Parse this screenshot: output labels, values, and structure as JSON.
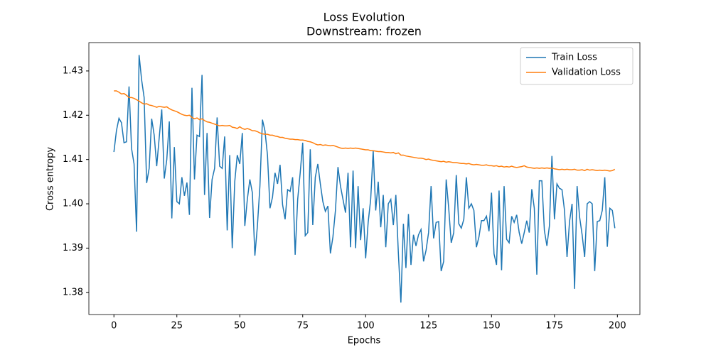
{
  "chart_data": {
    "type": "line",
    "title": "Loss Evolution",
    "subtitle": "Downstream: frozen",
    "x_label": "Epochs",
    "y_label": "Cross entropy",
    "x": [
      0,
      1,
      2,
      3,
      4,
      5,
      6,
      7,
      8,
      9,
      10,
      11,
      12,
      13,
      14,
      15,
      16,
      17,
      18,
      19,
      20,
      21,
      22,
      23,
      24,
      25,
      26,
      27,
      28,
      29,
      30,
      31,
      32,
      33,
      34,
      35,
      36,
      37,
      38,
      39,
      40,
      41,
      42,
      43,
      44,
      45,
      46,
      47,
      48,
      49,
      50,
      51,
      52,
      53,
      54,
      55,
      56,
      57,
      58,
      59,
      60,
      61,
      62,
      63,
      64,
      65,
      66,
      67,
      68,
      69,
      70,
      71,
      72,
      73,
      74,
      75,
      76,
      77,
      78,
      79,
      80,
      81,
      82,
      83,
      84,
      85,
      86,
      87,
      88,
      89,
      90,
      91,
      92,
      93,
      94,
      95,
      96,
      97,
      98,
      99,
      100,
      101,
      102,
      103,
      104,
      105,
      106,
      107,
      108,
      109,
      110,
      111,
      112,
      113,
      114,
      115,
      116,
      117,
      118,
      119,
      120,
      121,
      122,
      123,
      124,
      125,
      126,
      127,
      128,
      129,
      130,
      131,
      132,
      133,
      134,
      135,
      136,
      137,
      138,
      139,
      140,
      141,
      142,
      143,
      144,
      145,
      146,
      147,
      148,
      149,
      150,
      151,
      152,
      153,
      154,
      155,
      156,
      157,
      158,
      159,
      160,
      161,
      162,
      163,
      164,
      165,
      166,
      167,
      168,
      169,
      170,
      171,
      172,
      173,
      174,
      175,
      176,
      177,
      178,
      179,
      180,
      181,
      182,
      183,
      184,
      185,
      186,
      187,
      188,
      189,
      190,
      191,
      192,
      193,
      194,
      195,
      196,
      197,
      198,
      199
    ],
    "series": [
      {
        "name": "Train Loss",
        "color": "#1f77b4",
        "values": [
          1.4117,
          1.4165,
          1.4193,
          1.4183,
          1.4138,
          1.414,
          1.4265,
          1.4125,
          1.409,
          1.3937,
          1.4336,
          1.428,
          1.424,
          1.4047,
          1.408,
          1.4192,
          1.4155,
          1.4085,
          1.415,
          1.4213,
          1.4057,
          1.41,
          1.4186,
          1.3967,
          1.4128,
          1.4005,
          1.4,
          1.406,
          1.4018,
          1.4048,
          1.3975,
          1.4262,
          1.4055,
          1.4155,
          1.4152,
          1.4291,
          1.402,
          1.416,
          1.3968,
          1.4055,
          1.408,
          1.4195,
          1.4085,
          1.408,
          1.4152,
          1.394,
          1.411,
          1.39,
          1.405,
          1.411,
          1.409,
          1.416,
          1.395,
          1.401,
          1.4055,
          1.4025,
          1.3883,
          1.395,
          1.404,
          1.419,
          1.4165,
          1.411,
          1.399,
          1.4015,
          1.407,
          1.4045,
          1.4088,
          1.3998,
          1.3965,
          1.4032,
          1.4028,
          1.406,
          1.3885,
          1.401,
          1.407,
          1.4138,
          1.3928,
          1.3935,
          1.4123,
          1.3952,
          1.406,
          1.409,
          1.4045,
          1.4005,
          1.3983,
          1.3995,
          1.3888,
          1.3925,
          1.3985,
          1.4083,
          1.404,
          1.401,
          1.398,
          1.407,
          1.3902,
          1.4075,
          1.39,
          1.404,
          1.3918,
          1.399,
          1.3877,
          1.3958,
          1.401,
          1.412,
          1.3985,
          1.405,
          1.3947,
          1.402,
          1.3902,
          1.4,
          1.401,
          1.3952,
          1.402,
          1.3888,
          1.3777,
          1.3955,
          1.3855,
          1.3977,
          1.3862,
          1.393,
          1.3905,
          1.393,
          1.3942,
          1.387,
          1.3895,
          1.3935,
          1.404,
          1.3922,
          1.3958,
          1.396,
          1.3848,
          1.387,
          1.4055,
          1.399,
          1.3912,
          1.3935,
          1.4065,
          1.3955,
          1.3945,
          1.3965,
          1.406,
          1.399,
          1.4,
          1.3985,
          1.3902,
          1.3925,
          1.3962,
          1.3962,
          1.3972,
          1.3938,
          1.4025,
          1.3887,
          1.3862,
          1.403,
          1.385,
          1.404,
          1.392,
          1.3912,
          1.3972,
          1.3958,
          1.3975,
          1.3935,
          1.391,
          1.3935,
          1.3962,
          1.3935,
          1.4033,
          1.399,
          1.384,
          1.4052,
          1.4052,
          1.394,
          1.3905,
          1.395,
          1.4108,
          1.3965,
          1.4045,
          1.4035,
          1.4032,
          1.3985,
          1.388,
          1.396,
          1.4,
          1.3808,
          1.404,
          1.397,
          1.393,
          1.388,
          1.4,
          1.4005,
          1.4,
          1.3848,
          1.396,
          1.3962,
          1.3985,
          1.406,
          1.3903,
          1.399,
          1.3985,
          1.3945
        ]
      },
      {
        "name": "Validation Loss",
        "color": "#ff7f0e",
        "values": [
          1.4255,
          1.4255,
          1.4252,
          1.4248,
          1.4249,
          1.4245,
          1.424,
          1.424,
          1.4238,
          1.4235,
          1.4232,
          1.4228,
          1.4225,
          1.4226,
          1.4223,
          1.4222,
          1.422,
          1.4218,
          1.422,
          1.4219,
          1.4218,
          1.4219,
          1.4215,
          1.4212,
          1.421,
          1.4208,
          1.4205,
          1.4202,
          1.42,
          1.4199,
          1.42,
          1.4195,
          1.4192,
          1.4194,
          1.419,
          1.4192,
          1.4188,
          1.4185,
          1.4184,
          1.4182,
          1.418,
          1.4178,
          1.4176,
          1.4177,
          1.4176,
          1.4176,
          1.4177,
          1.4173,
          1.4172,
          1.417,
          1.4174,
          1.417,
          1.4168,
          1.417,
          1.4168,
          1.4165,
          1.4165,
          1.4163,
          1.416,
          1.4158,
          1.4157,
          1.4157,
          1.4155,
          1.4155,
          1.4153,
          1.4152,
          1.415,
          1.415,
          1.4148,
          1.4147,
          1.4146,
          1.4146,
          1.4145,
          1.4145,
          1.4144,
          1.4144,
          1.4143,
          1.4141,
          1.414,
          1.4138,
          1.4135,
          1.4133,
          1.4134,
          1.4132,
          1.4133,
          1.4132,
          1.4131,
          1.4132,
          1.413,
          1.4128,
          1.4126,
          1.4125,
          1.4126,
          1.4125,
          1.4126,
          1.4125,
          1.4126,
          1.4125,
          1.4124,
          1.4123,
          1.4122,
          1.4122,
          1.412,
          1.412,
          1.4119,
          1.4118,
          1.4118,
          1.4117,
          1.4116,
          1.4116,
          1.4115,
          1.4116,
          1.4113,
          1.4115,
          1.411,
          1.411,
          1.4108,
          1.4107,
          1.4106,
          1.4105,
          1.4104,
          1.4103,
          1.4103,
          1.4102,
          1.41,
          1.4101,
          1.4099,
          1.4098,
          1.4097,
          1.4096,
          1.4095,
          1.4096,
          1.4094,
          1.4095,
          1.4094,
          1.4093,
          1.4093,
          1.4092,
          1.4091,
          1.4091,
          1.409,
          1.4091,
          1.4089,
          1.4088,
          1.4089,
          1.4088,
          1.4087,
          1.4087,
          1.4088,
          1.4086,
          1.4086,
          1.4085,
          1.4086,
          1.4084,
          1.4085,
          1.4083,
          1.4084,
          1.4083,
          1.4085,
          1.4083,
          1.4082,
          1.4083,
          1.4084,
          1.4086,
          1.4083,
          1.4082,
          1.4081,
          1.408,
          1.4081,
          1.408,
          1.4081,
          1.408,
          1.4081,
          1.408,
          1.4081,
          1.4079,
          1.4078,
          1.4077,
          1.4078,
          1.4077,
          1.4078,
          1.4077,
          1.4077,
          1.4078,
          1.4076,
          1.4076,
          1.4077,
          1.4075,
          1.4078,
          1.4076,
          1.4077,
          1.4076,
          1.4075,
          1.4076,
          1.4075,
          1.4076,
          1.4075,
          1.4074,
          1.4075,
          1.4078
        ]
      }
    ],
    "xlim": [
      -9.95,
      208.95
    ],
    "xticks": [
      0,
      25,
      50,
      75,
      100,
      125,
      150,
      175,
      200
    ],
    "ylim": [
      1.375,
      1.4364
    ],
    "yticks": [
      1.38,
      1.39,
      {
        "value": 1.4,
        "label": "1.40"
      },
      1.41,
      1.42,
      1.43
    ],
    "legend": "upper right"
  }
}
